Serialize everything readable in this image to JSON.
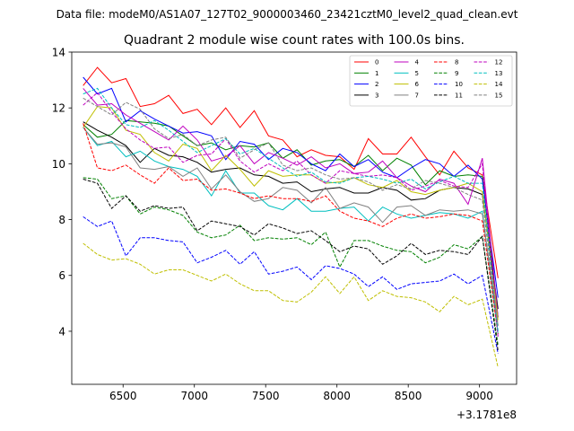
{
  "header": {
    "suptitle": "Data file: modeM0/AS1A07_127T02_9000003460_23421cztM0_level2_quad_clean.evt",
    "title": "Quadrant 2 module wise count rates with 100.0s bins."
  },
  "chart_data": {
    "type": "line",
    "title": "Quadrant 2 module wise count rates with 100.0s bins.",
    "x_offset_label": "+3.1781e8",
    "x_offset": 317810000,
    "xlim": [
      6140,
      9260
    ],
    "ylim": [
      2.1,
      14.0
    ],
    "xticks": [
      6500,
      7000,
      7500,
      8000,
      8500,
      9000
    ],
    "yticks": [
      4,
      6,
      8,
      10,
      12,
      14
    ],
    "x": [
      6220,
      6320,
      6420,
      6520,
      6620,
      6720,
      6820,
      6920,
      7020,
      7120,
      7220,
      7320,
      7420,
      7520,
      7620,
      7720,
      7820,
      7920,
      8020,
      8120,
      8220,
      8320,
      8420,
      8520,
      8620,
      8720,
      8820,
      8920,
      9020,
      9130
    ],
    "legend_position": "upper-right",
    "series": [
      {
        "name": "0",
        "color": "#ff0000",
        "dash": "solid",
        "values": [
          12.8,
          13.45,
          12.9,
          13.05,
          12.05,
          12.15,
          12.45,
          11.8,
          11.95,
          11.4,
          12.0,
          11.3,
          11.9,
          11.0,
          10.85,
          10.25,
          10.5,
          10.3,
          10.25,
          9.8,
          10.9,
          10.35,
          10.35,
          10.95,
          10.25,
          9.6,
          10.45,
          9.85,
          9.6,
          5.9
        ]
      },
      {
        "name": "1",
        "color": "#008000",
        "dash": "solid",
        "values": [
          11.4,
          10.95,
          11.05,
          11.55,
          11.5,
          11.45,
          11.35,
          11.0,
          10.65,
          10.75,
          10.5,
          10.65,
          10.6,
          10.75,
          10.2,
          10.5,
          9.95,
          10.1,
          10.15,
          9.9,
          10.3,
          9.75,
          10.2,
          9.95,
          9.25,
          9.75,
          9.55,
          9.6,
          9.55,
          4.5
        ]
      },
      {
        "name": "2",
        "color": "#0000ff",
        "dash": "solid",
        "values": [
          13.1,
          12.5,
          12.7,
          11.5,
          11.9,
          11.6,
          11.35,
          11.1,
          11.15,
          11.0,
          10.15,
          10.8,
          10.7,
          10.15,
          10.55,
          10.4,
          10.0,
          9.75,
          10.35,
          9.9,
          10.15,
          9.7,
          9.5,
          9.85,
          10.15,
          10.0,
          9.55,
          9.95,
          9.45,
          5.2
        ]
      },
      {
        "name": "3",
        "color": "#000000",
        "dash": "solid",
        "values": [
          11.5,
          11.2,
          10.95,
          10.65,
          10.05,
          10.55,
          10.3,
          10.25,
          10.05,
          9.7,
          9.8,
          9.85,
          9.6,
          9.55,
          9.3,
          9.35,
          9.0,
          9.1,
          9.15,
          8.95,
          8.95,
          9.15,
          9.05,
          8.7,
          8.75,
          9.05,
          9.15,
          9.1,
          8.9,
          4.8
        ]
      },
      {
        "name": "4",
        "color": "#bf00bf",
        "dash": "solid",
        "values": [
          12.7,
          12.1,
          12.15,
          11.75,
          11.45,
          11.15,
          10.85,
          11.35,
          10.85,
          10.1,
          10.25,
          10.65,
          10.0,
          10.4,
          10.2,
          9.95,
          10.25,
          9.85,
          10.0,
          9.65,
          9.7,
          10.1,
          9.5,
          9.2,
          9.0,
          9.45,
          9.3,
          8.55,
          10.2,
          4.5
        ]
      },
      {
        "name": "5",
        "color": "#00bfbf",
        "dash": "solid",
        "values": [
          11.3,
          10.65,
          10.8,
          10.25,
          10.45,
          10.1,
          9.9,
          9.8,
          9.55,
          8.85,
          9.75,
          8.95,
          8.95,
          8.5,
          8.35,
          8.75,
          8.3,
          8.3,
          8.4,
          8.45,
          7.95,
          8.45,
          8.2,
          8.05,
          8.15,
          8.25,
          8.2,
          8.05,
          8.3,
          3.9
        ]
      },
      {
        "name": "6",
        "color": "#bfbf00",
        "dash": "solid",
        "values": [
          11.3,
          12.05,
          12.0,
          11.2,
          11.05,
          10.4,
          10.1,
          10.7,
          10.55,
          9.75,
          10.3,
          9.8,
          9.2,
          9.75,
          9.55,
          9.6,
          9.6,
          9.3,
          9.35,
          9.5,
          9.25,
          9.15,
          9.4,
          9.0,
          8.9,
          9.05,
          9.15,
          9.3,
          9.0,
          4.4
        ]
      },
      {
        "name": "7",
        "color": "#808080",
        "dash": "solid",
        "values": [
          11.3,
          10.7,
          10.75,
          10.6,
          9.85,
          9.8,
          9.9,
          9.55,
          9.85,
          9.1,
          9.6,
          9.0,
          8.65,
          8.75,
          9.15,
          9.05,
          8.6,
          9.15,
          8.4,
          8.6,
          8.45,
          7.9,
          8.45,
          8.5,
          8.15,
          8.35,
          8.3,
          8.35,
          8.2,
          4.2
        ]
      },
      {
        "name": "8",
        "color": "#ff0000",
        "dash": "dashed",
        "values": [
          11.45,
          9.85,
          9.75,
          9.95,
          9.6,
          9.3,
          9.85,
          9.4,
          9.45,
          9.05,
          9.1,
          8.95,
          8.75,
          8.85,
          8.75,
          8.75,
          8.65,
          8.85,
          8.3,
          8.05,
          7.95,
          7.75,
          8.05,
          8.2,
          8.05,
          8.1,
          8.2,
          8.15,
          7.95,
          3.9
        ]
      },
      {
        "name": "9",
        "color": "#008000",
        "dash": "dashed",
        "values": [
          9.5,
          9.45,
          8.75,
          8.85,
          8.2,
          8.45,
          8.35,
          8.15,
          7.55,
          7.35,
          7.45,
          7.8,
          7.25,
          7.35,
          7.3,
          7.35,
          7.1,
          7.55,
          6.3,
          7.25,
          7.25,
          7.05,
          6.9,
          6.85,
          6.45,
          6.65,
          7.1,
          6.95,
          7.4,
          3.5
        ]
      },
      {
        "name": "10",
        "color": "#0000ff",
        "dash": "dashed",
        "values": [
          8.1,
          7.75,
          7.95,
          6.7,
          7.35,
          7.35,
          7.25,
          7.2,
          6.45,
          6.65,
          6.9,
          6.4,
          6.85,
          6.05,
          6.15,
          6.3,
          5.85,
          6.35,
          6.25,
          6.05,
          5.6,
          5.95,
          5.5,
          5.7,
          5.75,
          5.8,
          6.05,
          5.7,
          6.0,
          3.2
        ]
      },
      {
        "name": "11",
        "color": "#000000",
        "dash": "dashed",
        "values": [
          9.45,
          9.3,
          8.4,
          8.85,
          8.3,
          8.5,
          8.4,
          8.45,
          7.6,
          7.95,
          7.85,
          7.75,
          7.45,
          7.85,
          7.7,
          7.5,
          7.6,
          7.25,
          6.85,
          7.05,
          6.95,
          6.4,
          6.7,
          7.15,
          6.75,
          6.9,
          6.85,
          6.75,
          7.4,
          3.3
        ]
      },
      {
        "name": "12",
        "color": "#bf00bf",
        "dash": "dashed",
        "values": [
          12.1,
          12.55,
          11.85,
          11.25,
          10.85,
          10.55,
          10.6,
          10.05,
          10.3,
          10.35,
          10.9,
          10.1,
          9.7,
          10.0,
          9.75,
          10.1,
          9.6,
          9.3,
          9.75,
          9.65,
          9.55,
          9.6,
          9.5,
          9.05,
          9.2,
          9.4,
          9.2,
          9.15,
          10.0,
          3.8
        ]
      },
      {
        "name": "13",
        "color": "#00bfbf",
        "dash": "dashed",
        "values": [
          12.5,
          12.7,
          12.0,
          11.4,
          11.3,
          11.55,
          11.2,
          10.8,
          10.4,
          10.65,
          10.9,
          10.35,
          10.55,
          10.2,
          9.85,
          9.55,
          9.7,
          9.35,
          9.3,
          9.5,
          9.55,
          9.45,
          9.3,
          9.45,
          9.1,
          9.35,
          9.55,
          9.3,
          9.3,
          4.0
        ]
      },
      {
        "name": "14",
        "color": "#bfbf00",
        "dash": "dashed",
        "values": [
          7.15,
          6.75,
          6.55,
          6.6,
          6.4,
          6.05,
          6.2,
          6.2,
          6.0,
          5.8,
          6.05,
          5.7,
          5.45,
          5.45,
          5.1,
          5.05,
          5.4,
          5.95,
          5.35,
          5.95,
          5.1,
          5.45,
          5.25,
          5.2,
          5.05,
          4.7,
          5.25,
          4.95,
          5.15,
          2.7
        ]
      },
      {
        "name": "15",
        "color": "#808080",
        "dash": "dashed",
        "values": [
          12.35,
          12.05,
          11.75,
          12.2,
          11.95,
          11.25,
          10.9,
          11.05,
          10.65,
          10.85,
          10.95,
          10.2,
          10.5,
          10.75,
          9.95,
          9.75,
          9.85,
          9.6,
          9.45,
          9.5,
          9.35,
          9.05,
          9.25,
          9.1,
          9.4,
          9.3,
          9.15,
          8.9,
          8.7,
          4.2
        ]
      }
    ]
  }
}
